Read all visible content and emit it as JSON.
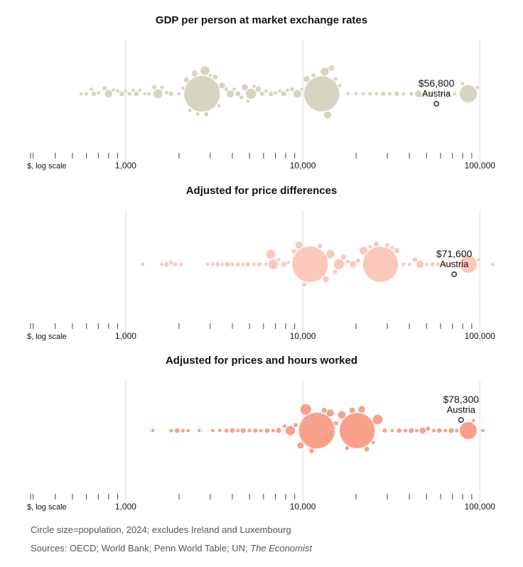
{
  "colors": {
    "gridline": "#d9d9d9",
    "axis": "#444444",
    "callout_stroke": "#3a3a3a"
  },
  "chart_data": [
    {
      "type": "scatter",
      "subtype": "beeswarm",
      "title": "GDP per person at market exchange rates",
      "xscale": "log",
      "xlim": [
        290,
        120000
      ],
      "xlabel": "$, log scale",
      "xticks": [
        1000,
        10000,
        100000
      ],
      "xtick_labels": [
        "1,000",
        "10,000",
        "100,000"
      ],
      "color": "#d7d4c0",
      "highlight": {
        "country": "Austria",
        "value": 56800,
        "label": "$56,800"
      },
      "points": [
        {
          "x": 560,
          "pop": 6
        },
        {
          "x": 600,
          "pop": 15
        },
        {
          "x": 640,
          "pop": 4
        },
        {
          "x": 660,
          "pop": 25
        },
        {
          "x": 700,
          "pop": 10
        },
        {
          "x": 760,
          "pop": 20
        },
        {
          "x": 800,
          "pop": 60
        },
        {
          "x": 850,
          "pop": 12
        },
        {
          "x": 900,
          "pop": 8
        },
        {
          "x": 950,
          "pop": 30
        },
        {
          "x": 1000,
          "pop": 10
        },
        {
          "x": 1050,
          "pop": 18
        },
        {
          "x": 1100,
          "pop": 5
        },
        {
          "x": 1150,
          "pop": 25
        },
        {
          "x": 1200,
          "pop": 9
        },
        {
          "x": 1280,
          "pop": 7
        },
        {
          "x": 1350,
          "pop": 12
        },
        {
          "x": 1450,
          "pop": 20
        },
        {
          "x": 1520,
          "pop": 95
        },
        {
          "x": 1600,
          "pop": 15
        },
        {
          "x": 1700,
          "pop": 8
        },
        {
          "x": 1800,
          "pop": 22
        },
        {
          "x": 2000,
          "pop": 6
        },
        {
          "x": 2100,
          "pop": 12
        },
        {
          "x": 2200,
          "pop": 30
        },
        {
          "x": 2300,
          "pop": 9
        },
        {
          "x": 2450,
          "pop": 40
        },
        {
          "x": 2550,
          "pop": 15
        },
        {
          "x": 2700,
          "pop": 1450
        },
        {
          "x": 2850,
          "pop": 20
        },
        {
          "x": 3000,
          "pop": 12
        },
        {
          "x": 2800,
          "pop": 90
        },
        {
          "x": 3200,
          "pop": 25
        },
        {
          "x": 3350,
          "pop": 8
        },
        {
          "x": 3500,
          "pop": 40
        },
        {
          "x": 3700,
          "pop": 15
        },
        {
          "x": 3900,
          "pop": 60
        },
        {
          "x": 4100,
          "pop": 10
        },
        {
          "x": 4300,
          "pop": 30
        },
        {
          "x": 4500,
          "pop": 18
        },
        {
          "x": 4700,
          "pop": 45
        },
        {
          "x": 4900,
          "pop": 7
        },
        {
          "x": 5100,
          "pop": 120
        },
        {
          "x": 5300,
          "pop": 12
        },
        {
          "x": 5600,
          "pop": 35
        },
        {
          "x": 5900,
          "pop": 20
        },
        {
          "x": 6200,
          "pop": 9
        },
        {
          "x": 6600,
          "pop": 25
        },
        {
          "x": 7000,
          "pop": 14
        },
        {
          "x": 7400,
          "pop": 6
        },
        {
          "x": 7800,
          "pop": 30
        },
        {
          "x": 8200,
          "pop": 10
        },
        {
          "x": 8700,
          "pop": 18
        },
        {
          "x": 9300,
          "pop": 70
        },
        {
          "x": 9900,
          "pop": 8
        },
        {
          "x": 10500,
          "pop": 40
        },
        {
          "x": 11500,
          "pop": 20
        },
        {
          "x": 12800,
          "pop": 1400
        },
        {
          "x": 13300,
          "pop": 75
        },
        {
          "x": 13800,
          "pop": 60
        },
        {
          "x": 14500,
          "pop": 35
        },
        {
          "x": 15300,
          "pop": 18
        },
        {
          "x": 16200,
          "pop": 10
        },
        {
          "x": 18000,
          "pop": 6
        },
        {
          "x": 20000,
          "pop": 12
        },
        {
          "x": 22000,
          "pop": 8
        },
        {
          "x": 24000,
          "pop": 15
        },
        {
          "x": 26000,
          "pop": 5
        },
        {
          "x": 28500,
          "pop": 20
        },
        {
          "x": 31000,
          "pop": 10
        },
        {
          "x": 34000,
          "pop": 25
        },
        {
          "x": 37000,
          "pop": 7
        },
        {
          "x": 41000,
          "pop": 15
        },
        {
          "x": 45000,
          "pop": 50
        },
        {
          "x": 49000,
          "pop": 11
        },
        {
          "x": 53000,
          "pop": 20
        },
        {
          "x": 61000,
          "pop": 8
        },
        {
          "x": 66000,
          "pop": 10
        },
        {
          "x": 72000,
          "pop": 5
        },
        {
          "x": 80000,
          "pop": 7
        },
        {
          "x": 86000,
          "pop": 340
        },
        {
          "x": 97000,
          "pop": 4
        }
      ]
    },
    {
      "type": "scatter",
      "subtype": "beeswarm",
      "title": "Adjusted for price differences",
      "xscale": "log",
      "xlim": [
        290,
        120000
      ],
      "xlabel": "$, log scale",
      "xticks": [
        1000,
        10000,
        100000
      ],
      "xtick_labels": [
        "1,000",
        "10,000",
        "100,000"
      ],
      "color": "#fcc8bc",
      "highlight": {
        "country": "Austria",
        "value": 71600,
        "label": "$71,600"
      },
      "points": [
        {
          "x": 1250,
          "pop": 3
        },
        {
          "x": 1600,
          "pop": 10
        },
        {
          "x": 1700,
          "pop": 25
        },
        {
          "x": 1800,
          "pop": 15
        },
        {
          "x": 1900,
          "pop": 20
        },
        {
          "x": 2050,
          "pop": 8
        },
        {
          "x": 2900,
          "pop": 6
        },
        {
          "x": 3100,
          "pop": 12
        },
        {
          "x": 3300,
          "pop": 20
        },
        {
          "x": 3500,
          "pop": 9
        },
        {
          "x": 3750,
          "pop": 30
        },
        {
          "x": 4000,
          "pop": 14
        },
        {
          "x": 4300,
          "pop": 18
        },
        {
          "x": 4600,
          "pop": 8
        },
        {
          "x": 4900,
          "pop": 25
        },
        {
          "x": 5300,
          "pop": 12
        },
        {
          "x": 5700,
          "pop": 20
        },
        {
          "x": 6200,
          "pop": 10
        },
        {
          "x": 6600,
          "pop": 90
        },
        {
          "x": 6800,
          "pop": 100
        },
        {
          "x": 7300,
          "pop": 15
        },
        {
          "x": 7800,
          "pop": 35
        },
        {
          "x": 8300,
          "pop": 12
        },
        {
          "x": 8900,
          "pop": 20
        },
        {
          "x": 9500,
          "pop": 60
        },
        {
          "x": 10200,
          "pop": 18
        },
        {
          "x": 11000,
          "pop": 1450
        },
        {
          "x": 12500,
          "pop": 25
        },
        {
          "x": 13500,
          "pop": 40
        },
        {
          "x": 14300,
          "pop": 80
        },
        {
          "x": 15200,
          "pop": 20
        },
        {
          "x": 16000,
          "pop": 120
        },
        {
          "x": 17000,
          "pop": 30
        },
        {
          "x": 18000,
          "pop": 15
        },
        {
          "x": 19200,
          "pop": 50
        },
        {
          "x": 20500,
          "pop": 22
        },
        {
          "x": 22000,
          "pop": 70
        },
        {
          "x": 24000,
          "pop": 12
        },
        {
          "x": 26000,
          "pop": 30
        },
        {
          "x": 27500,
          "pop": 1400
        },
        {
          "x": 30000,
          "pop": 20
        },
        {
          "x": 32000,
          "pop": 10
        },
        {
          "x": 34000,
          "pop": 35
        },
        {
          "x": 37000,
          "pop": 15
        },
        {
          "x": 40000,
          "pop": 8
        },
        {
          "x": 43000,
          "pop": 25
        },
        {
          "x": 46000,
          "pop": 60
        },
        {
          "x": 50000,
          "pop": 12
        },
        {
          "x": 54000,
          "pop": 20
        },
        {
          "x": 58000,
          "pop": 15
        },
        {
          "x": 63000,
          "pop": 9
        },
        {
          "x": 68000,
          "pop": 10
        },
        {
          "x": 80000,
          "pop": 6
        },
        {
          "x": 86000,
          "pop": 330
        },
        {
          "x": 98000,
          "pop": 4
        },
        {
          "x": 118000,
          "pop": 3
        }
      ]
    },
    {
      "type": "scatter",
      "subtype": "beeswarm",
      "title": "Adjusted for prices and hours worked",
      "xscale": "log",
      "xlim": [
        290,
        120000
      ],
      "xlabel": "$, log scale",
      "xticks": [
        1000,
        10000,
        100000
      ],
      "xtick_labels": [
        "1,000",
        "10,000",
        "100,000"
      ],
      "color": "#f9a08b",
      "highlight": {
        "country": "Austria",
        "value": 78300,
        "label": "$78,300"
      },
      "points": [
        {
          "x": 1420,
          "pop": 3
        },
        {
          "x": 1800,
          "pop": 10
        },
        {
          "x": 1950,
          "pop": 25
        },
        {
          "x": 2100,
          "pop": 15
        },
        {
          "x": 2250,
          "pop": 8
        },
        {
          "x": 2600,
          "pop": 5
        },
        {
          "x": 3100,
          "pop": 6
        },
        {
          "x": 3400,
          "pop": 12
        },
        {
          "x": 3700,
          "pop": 18
        },
        {
          "x": 4000,
          "pop": 25
        },
        {
          "x": 4300,
          "pop": 10
        },
        {
          "x": 4600,
          "pop": 30
        },
        {
          "x": 5000,
          "pop": 14
        },
        {
          "x": 5400,
          "pop": 20
        },
        {
          "x": 5800,
          "pop": 9
        },
        {
          "x": 6300,
          "pop": 25
        },
        {
          "x": 6800,
          "pop": 12
        },
        {
          "x": 7300,
          "pop": 30
        },
        {
          "x": 7900,
          "pop": 15
        },
        {
          "x": 8500,
          "pop": 100
        },
        {
          "x": 9100,
          "pop": 20
        },
        {
          "x": 9700,
          "pop": 45
        },
        {
          "x": 10400,
          "pop": 130
        },
        {
          "x": 11200,
          "pop": 25
        },
        {
          "x": 12000,
          "pop": 1450
        },
        {
          "x": 13200,
          "pop": 30
        },
        {
          "x": 14300,
          "pop": 60
        },
        {
          "x": 15400,
          "pop": 20
        },
        {
          "x": 16600,
          "pop": 70
        },
        {
          "x": 17800,
          "pop": 18
        },
        {
          "x": 19000,
          "pop": 35
        },
        {
          "x": 20300,
          "pop": 1400
        },
        {
          "x": 21500,
          "pop": 50
        },
        {
          "x": 23000,
          "pop": 25
        },
        {
          "x": 25000,
          "pop": 12
        },
        {
          "x": 26500,
          "pop": 110
        },
        {
          "x": 29000,
          "pop": 20
        },
        {
          "x": 32000,
          "pop": 9
        },
        {
          "x": 35000,
          "pop": 25
        },
        {
          "x": 38000,
          "pop": 15
        },
        {
          "x": 41000,
          "pop": 30
        },
        {
          "x": 44000,
          "pop": 12
        },
        {
          "x": 47500,
          "pop": 45
        },
        {
          "x": 51000,
          "pop": 20
        },
        {
          "x": 55000,
          "pop": 15
        },
        {
          "x": 59000,
          "pop": 25
        },
        {
          "x": 64000,
          "pop": 10
        },
        {
          "x": 69000,
          "pop": 30
        },
        {
          "x": 74000,
          "pop": 12
        },
        {
          "x": 86000,
          "pop": 330
        },
        {
          "x": 92000,
          "pop": 6
        },
        {
          "x": 104000,
          "pop": 4
        }
      ]
    }
  ],
  "footer": {
    "note": "Circle size=population, 2024; excludes Ireland and Luxembourg",
    "sources_prefix": "Sources: OECD; World Bank; Penn World Table; UN; ",
    "sources_publication": "The Economist"
  }
}
